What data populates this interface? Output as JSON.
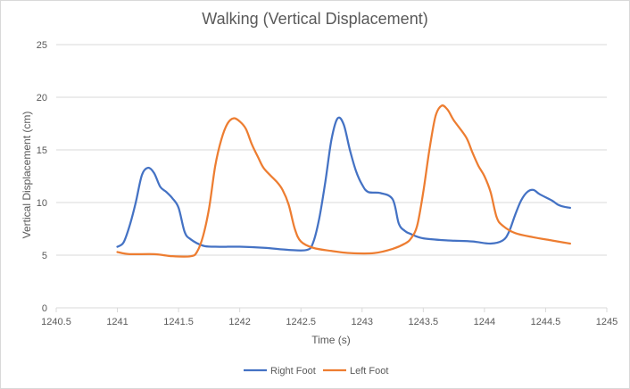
{
  "chart_data": {
    "type": "scatter",
    "title": "Walking (Vertical Displacement)",
    "xlabel": "Time (s)",
    "ylabel": "Vertical Displacement (cm)",
    "xlim": [
      1240.5,
      1245
    ],
    "ylim": [
      0,
      25
    ],
    "x_ticks": [
      "1240.5",
      "1241",
      "1241.5",
      "1242",
      "1242.5",
      "1243",
      "1243.5",
      "1244",
      "1244.5",
      "1245"
    ],
    "y_ticks": [
      "0",
      "5",
      "10",
      "15",
      "20",
      "25"
    ],
    "grid": "horizontal",
    "legend_position": "bottom",
    "series": [
      {
        "name": "Right Foot",
        "color": "#4472C4",
        "points": [
          [
            1241.0,
            5.8
          ],
          [
            1241.05,
            6.2
          ],
          [
            1241.1,
            7.8
          ],
          [
            1241.15,
            10.0
          ],
          [
            1241.2,
            12.6
          ],
          [
            1241.25,
            13.3
          ],
          [
            1241.3,
            12.8
          ],
          [
            1241.35,
            11.5
          ],
          [
            1241.4,
            11.0
          ],
          [
            1241.45,
            10.4
          ],
          [
            1241.5,
            9.5
          ],
          [
            1241.55,
            7.2
          ],
          [
            1241.6,
            6.5
          ],
          [
            1241.7,
            5.9
          ],
          [
            1241.8,
            5.8
          ],
          [
            1242.0,
            5.8
          ],
          [
            1242.2,
            5.7
          ],
          [
            1242.4,
            5.5
          ],
          [
            1242.55,
            5.5
          ],
          [
            1242.6,
            6.2
          ],
          [
            1242.65,
            8.5
          ],
          [
            1242.7,
            12.0
          ],
          [
            1242.75,
            16.0
          ],
          [
            1242.8,
            18.0
          ],
          [
            1242.85,
            17.4
          ],
          [
            1242.9,
            15.0
          ],
          [
            1242.95,
            13.0
          ],
          [
            1243.0,
            11.7
          ],
          [
            1243.05,
            11.0
          ],
          [
            1243.15,
            10.9
          ],
          [
            1243.25,
            10.3
          ],
          [
            1243.3,
            8.0
          ],
          [
            1243.35,
            7.3
          ],
          [
            1243.4,
            7.0
          ],
          [
            1243.5,
            6.6
          ],
          [
            1243.7,
            6.4
          ],
          [
            1243.9,
            6.3
          ],
          [
            1244.05,
            6.1
          ],
          [
            1244.15,
            6.4
          ],
          [
            1244.2,
            7.2
          ],
          [
            1244.25,
            8.8
          ],
          [
            1244.3,
            10.2
          ],
          [
            1244.35,
            11.0
          ],
          [
            1244.4,
            11.2
          ],
          [
            1244.45,
            10.8
          ],
          [
            1244.55,
            10.2
          ],
          [
            1244.6,
            9.8
          ],
          [
            1244.65,
            9.6
          ],
          [
            1244.7,
            9.5
          ]
        ]
      },
      {
        "name": "Left Foot",
        "color": "#ED7D31",
        "points": [
          [
            1241.0,
            5.3
          ],
          [
            1241.1,
            5.1
          ],
          [
            1241.3,
            5.1
          ],
          [
            1241.45,
            4.9
          ],
          [
            1241.6,
            4.9
          ],
          [
            1241.65,
            5.3
          ],
          [
            1241.7,
            6.8
          ],
          [
            1241.75,
            9.5
          ],
          [
            1241.8,
            13.5
          ],
          [
            1241.85,
            16.0
          ],
          [
            1241.9,
            17.5
          ],
          [
            1241.95,
            18.0
          ],
          [
            1242.0,
            17.7
          ],
          [
            1242.05,
            17.0
          ],
          [
            1242.1,
            15.5
          ],
          [
            1242.15,
            14.3
          ],
          [
            1242.2,
            13.2
          ],
          [
            1242.3,
            12.0
          ],
          [
            1242.35,
            11.2
          ],
          [
            1242.4,
            9.8
          ],
          [
            1242.45,
            7.5
          ],
          [
            1242.5,
            6.3
          ],
          [
            1242.6,
            5.7
          ],
          [
            1242.75,
            5.4
          ],
          [
            1242.9,
            5.2
          ],
          [
            1243.1,
            5.2
          ],
          [
            1243.25,
            5.6
          ],
          [
            1243.35,
            6.1
          ],
          [
            1243.4,
            6.6
          ],
          [
            1243.45,
            7.8
          ],
          [
            1243.5,
            11.0
          ],
          [
            1243.55,
            15.0
          ],
          [
            1243.6,
            18.2
          ],
          [
            1243.65,
            19.2
          ],
          [
            1243.7,
            18.8
          ],
          [
            1243.75,
            17.8
          ],
          [
            1243.85,
            16.2
          ],
          [
            1243.9,
            14.8
          ],
          [
            1243.95,
            13.5
          ],
          [
            1244.0,
            12.5
          ],
          [
            1244.05,
            11.0
          ],
          [
            1244.1,
            8.6
          ],
          [
            1244.15,
            7.8
          ],
          [
            1244.25,
            7.1
          ],
          [
            1244.4,
            6.7
          ],
          [
            1244.55,
            6.4
          ],
          [
            1244.65,
            6.2
          ],
          [
            1244.7,
            6.1
          ]
        ]
      }
    ]
  }
}
